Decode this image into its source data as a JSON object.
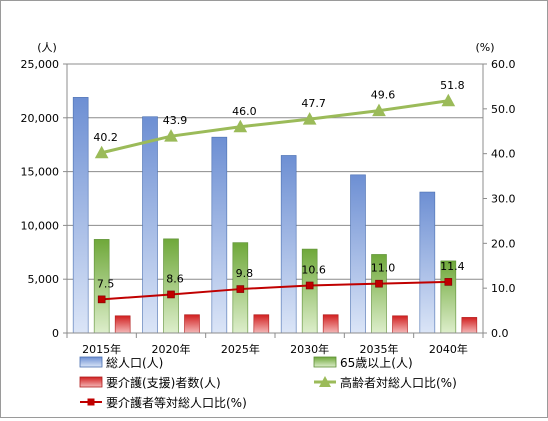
{
  "chart_data": {
    "type": "bar",
    "categories": [
      "2015年",
      "2020年",
      "2025年",
      "2030年",
      "2035年",
      "2040年"
    ],
    "series": [
      {
        "name": "総人口(人)",
        "type": "bar",
        "axis": "left",
        "color": "#6d8fd3",
        "values": [
          21900,
          20100,
          18200,
          16500,
          14700,
          13100
        ]
      },
      {
        "name": "65歳以上(人)",
        "type": "bar",
        "axis": "left",
        "color": "#7cb04a",
        "values": [
          8700,
          8750,
          8400,
          7800,
          7300,
          6700
        ]
      },
      {
        "name": "要介護(支援)者数(人)",
        "type": "bar",
        "axis": "left",
        "color": "#e03030",
        "values": [
          1600,
          1700,
          1700,
          1700,
          1600,
          1450
        ]
      },
      {
        "name": "高齢者対総人口比(%)",
        "type": "line",
        "axis": "right",
        "color": "#9bbb59",
        "marker": "triangle",
        "values": [
          40.2,
          43.9,
          46.0,
          47.7,
          49.6,
          51.8
        ]
      },
      {
        "name": "要介護者等対総人口比(%)",
        "type": "line",
        "axis": "right",
        "color": "#c00000",
        "marker": "square",
        "values": [
          7.5,
          8.6,
          9.8,
          10.6,
          11.0,
          11.4
        ]
      }
    ],
    "y_left": {
      "unit": "(人)",
      "range": [
        0,
        25000
      ],
      "ticks": [
        "0",
        "5,000",
        "10,000",
        "15,000",
        "20,000",
        "25,000"
      ],
      "tick_values": [
        0,
        5000,
        10000,
        15000,
        20000,
        25000
      ]
    },
    "y_right": {
      "unit": "(%)",
      "range": [
        0,
        60
      ],
      "ticks": [
        "0.0",
        "10.0",
        "20.0",
        "30.0",
        "40.0",
        "50.0",
        "60.0"
      ],
      "tick_values": [
        0,
        10,
        20,
        30,
        40,
        50,
        60
      ]
    },
    "line_labels": {
      "高齢者対総人口比(%)": [
        "40.2",
        "43.9",
        "46.0",
        "47.7",
        "49.6",
        "51.8"
      ],
      "要介護者等対総人口比(%)": [
        "7.5",
        "8.6",
        "9.8",
        "10.6",
        "11.0",
        "11.4"
      ]
    },
    "grid": true,
    "legend_position": "bottom"
  }
}
